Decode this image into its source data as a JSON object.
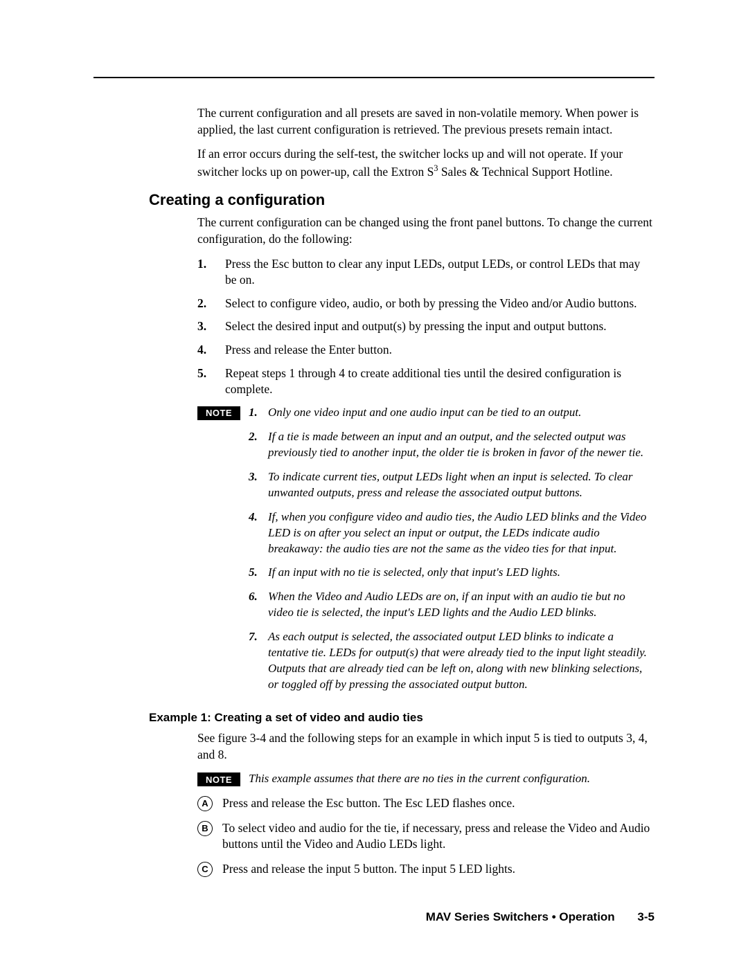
{
  "intro": {
    "p1": "The current configuration and all presets are saved in non-volatile memory.  When power is applied, the last current configuration is retrieved.  The previous presets remain intact.",
    "p2a": "If an error occurs during the self-test, the switcher locks up and will not operate.  If your switcher locks up on power-up, call the Extron S",
    "p2sup": "3",
    "p2b": " Sales & Technical Support Hotline."
  },
  "h2": "Creating a configuration",
  "config_intro": "The current configuration can be changed using the front panel buttons.  To change the current configuration, do the following:",
  "steps": [
    {
      "n": "1.",
      "t": "Press the Esc button to clear any input LEDs, output LEDs, or control LEDs that may be on."
    },
    {
      "n": "2.",
      "t": "Select to configure video, audio, or both by pressing the Video and/or Audio buttons."
    },
    {
      "n": "3.",
      "t": "Select the desired input and output(s) by pressing the input and output buttons."
    },
    {
      "n": "4.",
      "t": "Press and release the Enter button."
    },
    {
      "n": "5.",
      "t": "Repeat steps 1 through 4 to create additional ties until the desired configuration is complete."
    }
  ],
  "note_label": "NOTE",
  "notes": [
    {
      "n": "1.",
      "t": "Only one video input and one audio input can be tied to an output."
    },
    {
      "n": "2.",
      "t": "If a tie is made between an input and an output, and the selected output was previously tied to another input, the older tie is broken in favor of the newer tie."
    },
    {
      "n": "3.",
      "t": "To indicate current ties, output LEDs light when an input is selected.  To clear unwanted outputs, press and release the associated output buttons."
    },
    {
      "n": "4.",
      "t": "If, when you configure video and audio ties, the Audio LED blinks and the Video LED is on after you select an input or output, the LEDs indicate audio breakaway: the audio ties are not the same as the video ties for that input."
    },
    {
      "n": "5.",
      "t": "If an input with no tie is selected, only that input's LED lights."
    },
    {
      "n": "6.",
      "t": "When the Video and Audio LEDs are on, if an input with an audio tie but no video tie is selected, the input's LED lights and the Audio LED blinks."
    },
    {
      "n": "7.",
      "t": "As each output is selected, the associated output LED blinks to indicate a tentative tie.  LEDs for output(s) that were already tied to the input light steadily.  Outputs that are already tied can be left on, along with new blinking selections, or toggled off by pressing the associated output button."
    }
  ],
  "h3": "Example 1:  Creating a set of video and audio ties",
  "ex_intro": "See figure 3-4 and the following steps for an example in which input 5 is tied to outputs 3, 4, and 8.",
  "ex_note": "This example assumes that there are no ties in the current configuration.",
  "letters": [
    {
      "l": "A",
      "t": "Press and release the Esc button.  The Esc LED flashes once."
    },
    {
      "l": "B",
      "t": "To select video and audio for the tie, if necessary, press and release the Video and Audio buttons until the Video and Audio LEDs light."
    },
    {
      "l": "C",
      "t": "Press and release the input 5 button.  The input 5 LED lights."
    }
  ],
  "footer": {
    "title": "MAV Series Switchers • Operation",
    "page": "3-5"
  }
}
